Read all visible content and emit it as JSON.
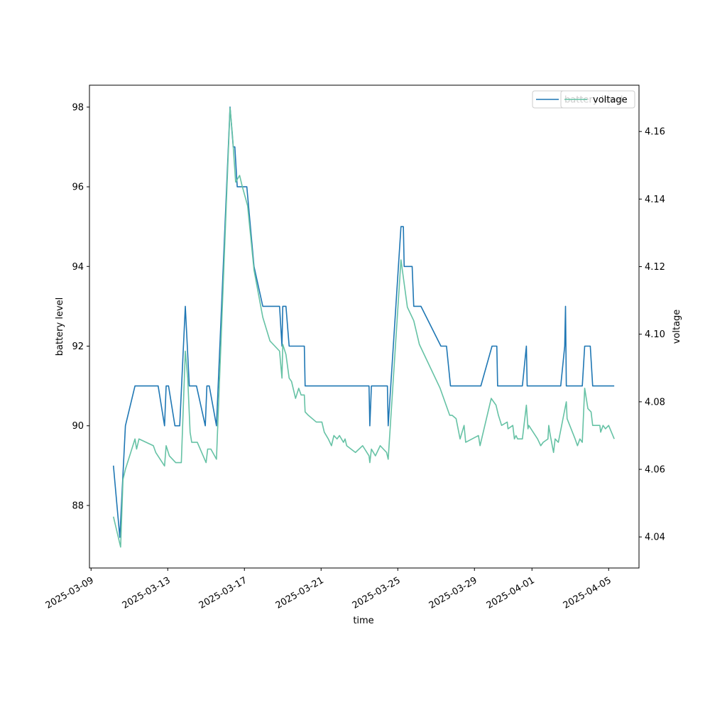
{
  "chart_data": {
    "type": "line",
    "xlabel": "time",
    "ylabel": "battery level",
    "y2label": "voltage",
    "xlim": [
      "2025-03-08 22:00",
      "2025-04-06 14:00"
    ],
    "xticks": [
      "2025-03-09",
      "2025-03-13",
      "2025-03-17",
      "2025-03-21",
      "2025-03-25",
      "2025-03-29",
      "2025-04-01",
      "2025-04-05"
    ],
    "ylim": [
      86.43,
      98.55
    ],
    "yticks": [
      88,
      90,
      92,
      94,
      96,
      98
    ],
    "y2lim": [
      4.0308,
      4.1737
    ],
    "y2ticks": [
      4.04,
      4.06,
      4.08,
      {
        "value": 4.1,
        "label": "4.10"
      },
      4.12,
      4.14,
      4.16
    ],
    "legend": "upper right",
    "series": [
      {
        "name": "battery level",
        "color": "#1f77b4",
        "x": [
          "2025-03-10 04:00",
          "2025-03-10 12:00",
          "2025-03-10 19:00",
          "2025-03-11 07:00",
          "2025-03-12 12:00",
          "2025-03-12 20:00",
          "2025-03-12 22:00",
          "2025-03-13 01:00",
          "2025-03-13 09:00",
          "2025-03-13 15:00",
          "2025-03-13 22:00",
          "2025-03-14 03:00",
          "2025-03-14 12:00",
          "2025-03-14 23:00",
          "2025-03-15 01:00",
          "2025-03-15 04:00",
          "2025-03-15 13:00",
          "2025-03-16 06:00",
          "2025-03-16 10:00",
          "2025-03-16 12:00",
          "2025-03-16 15:00",
          "2025-03-17 03:00",
          "2025-03-17 12:00",
          "2025-03-17 23:00",
          "2025-03-18 20:00",
          "2025-03-18 23:00",
          "2025-03-19 00:00",
          "2025-03-19 04:00",
          "2025-03-19 08:00",
          "2025-03-20 03:00",
          "2025-03-20 04:00",
          "2025-03-23 12:00",
          "2025-03-23 13:00",
          "2025-03-23 15:00",
          "2025-03-24 11:00",
          "2025-03-24 12:00",
          "2025-03-25 04:00",
          "2025-03-25 07:00",
          "2025-03-25 08:00",
          "2025-03-25 18:00",
          "2025-03-25 20:00",
          "2025-03-26 05:00",
          "2025-03-27 06:00",
          "2025-03-27 13:00",
          "2025-03-27 18:00",
          "2025-03-29 08:00",
          "2025-03-29 22:00",
          "2025-03-30 04:00",
          "2025-03-30 05:00",
          "2025-03-31 12:00",
          "2025-03-31 17:00",
          "2025-03-31 18:00",
          "2025-04-02 12:00",
          "2025-04-02 17:00",
          "2025-04-02 18:00",
          "2025-04-02 19:00",
          "2025-04-03 15:00",
          "2025-04-03 18:00",
          "2025-04-04 01:00",
          "2025-04-04 04:00",
          "2025-04-05 07:00"
        ],
        "values": [
          89,
          87.2,
          90,
          91,
          91,
          90,
          91,
          91,
          90,
          90,
          93,
          91,
          91,
          90,
          91,
          91,
          90,
          98,
          97,
          97,
          96,
          96,
          94,
          93,
          93,
          92,
          93,
          93,
          92,
          92,
          91,
          91,
          90,
          91,
          91,
          90,
          95,
          95,
          94,
          94,
          93,
          93,
          92,
          92,
          91,
          91,
          92,
          92,
          91,
          91,
          92,
          91,
          91,
          92,
          93,
          91,
          91,
          92,
          92,
          91,
          91
        ]
      },
      {
        "name": "voltage",
        "color": "#66c2a5",
        "axis": "y2",
        "x": [
          "2025-03-10 04:00",
          "2025-03-10 13:00",
          "2025-03-10 16:00",
          "2025-03-10 19:00",
          "2025-03-11 07:00",
          "2025-03-11 09:00",
          "2025-03-11 12:00",
          "2025-03-12 06:00",
          "2025-03-12 09:00",
          "2025-03-12 20:00",
          "2025-03-12 22:00",
          "2025-03-13 02:00",
          "2025-03-13 10:00",
          "2025-03-13 17:00",
          "2025-03-13 22:00",
          "2025-03-14 01:00",
          "2025-03-14 04:00",
          "2025-03-14 06:00",
          "2025-03-14 13:00",
          "2025-03-15 00:00",
          "2025-03-15 02:00",
          "2025-03-15 06:00",
          "2025-03-15 13:00",
          "2025-03-16 06:00",
          "2025-03-16 09:00",
          "2025-03-16 13:00",
          "2025-03-16 18:00",
          "2025-03-16 21:00",
          "2025-03-17 04:00",
          "2025-03-17 12:00",
          "2025-03-17 23:00",
          "2025-03-18 08:00",
          "2025-03-18 20:00",
          "2025-03-18 23:00",
          "2025-03-19 00:00",
          "2025-03-19 04:00",
          "2025-03-19 08:00",
          "2025-03-19 11:00",
          "2025-03-19 14:00",
          "2025-03-19 16:00",
          "2025-03-19 20:00",
          "2025-03-19 23:00",
          "2025-03-20 03:00",
          "2025-03-20 04:00",
          "2025-03-20 08:00",
          "2025-03-20 18:00",
          "2025-03-21 01:00",
          "2025-03-21 04:00",
          "2025-03-21 09:00",
          "2025-03-21 13:00",
          "2025-03-21 16:00",
          "2025-03-21 20:00",
          "2025-03-21 23:00",
          "2025-03-22 04:00",
          "2025-03-22 06:00",
          "2025-03-22 08:00",
          "2025-03-22 19:00",
          "2025-03-23 04:00",
          "2025-03-23 12:00",
          "2025-03-23 13:00",
          "2025-03-23 15:00",
          "2025-03-23 20:00",
          "2025-03-24 02:00",
          "2025-03-24 06:00",
          "2025-03-24 10:00",
          "2025-03-24 12:00",
          "2025-03-25 04:00",
          "2025-03-25 08:00",
          "2025-03-25 12:00",
          "2025-03-25 20:00",
          "2025-03-26 03:00",
          "2025-03-27 05:00",
          "2025-03-27 11:00",
          "2025-03-27 17:00",
          "2025-03-27 20:00",
          "2025-03-28 01:00",
          "2025-03-28 06:00",
          "2025-03-28 11:00",
          "2025-03-28 13:00",
          "2025-03-29 05:00",
          "2025-03-29 07:00",
          "2025-03-29 21:00",
          "2025-03-30 03:00",
          "2025-03-30 06:00",
          "2025-03-30 10:00",
          "2025-03-30 17:00",
          "2025-03-30 18:00",
          "2025-03-31 00:00",
          "2025-03-31 02:00",
          "2025-03-31 04:00",
          "2025-03-31 06:00",
          "2025-03-31 09:00",
          "2025-03-31 12:00",
          "2025-03-31 17:00",
          "2025-03-31 19:00",
          "2025-03-31 20:00",
          "2025-04-01 07:00",
          "2025-04-01 11:00",
          "2025-04-01 14:00",
          "2025-04-01 20:00",
          "2025-04-01 21:00",
          "2025-04-01 23:00",
          "2025-04-02 03:00",
          "2025-04-02 05:00",
          "2025-04-02 09:00",
          "2025-04-02 19:00",
          "2025-04-02 20:00",
          "2025-04-03 06:00",
          "2025-04-03 09:00",
          "2025-04-03 12:00",
          "2025-04-03 15:00",
          "2025-04-03 18:00",
          "2025-04-03 22:00",
          "2025-04-04 02:00",
          "2025-04-04 04:00",
          "2025-04-04 13:00",
          "2025-04-04 14:00",
          "2025-04-04 17:00",
          "2025-04-04 20:00",
          "2025-04-05 00:00",
          "2025-04-05 07:00"
        ],
        "values": [
          4.046,
          4.037,
          4.057,
          4.06,
          4.069,
          4.066,
          4.069,
          4.067,
          4.065,
          4.061,
          4.067,
          4.064,
          4.062,
          4.062,
          4.095,
          4.087,
          4.071,
          4.068,
          4.068,
          4.062,
          4.066,
          4.066,
          4.063,
          4.167,
          4.159,
          4.145,
          4.147,
          4.144,
          4.138,
          4.119,
          4.105,
          4.098,
          4.095,
          4.087,
          4.097,
          4.094,
          4.087,
          4.086,
          4.083,
          4.081,
          4.084,
          4.082,
          4.082,
          4.077,
          4.076,
          4.074,
          4.074,
          4.071,
          4.069,
          4.067,
          4.07,
          4.069,
          4.07,
          4.068,
          4.069,
          4.067,
          4.065,
          4.067,
          4.064,
          4.062,
          4.066,
          4.064,
          4.067,
          4.066,
          4.065,
          4.063,
          4.122,
          4.115,
          4.108,
          4.104,
          4.097,
          4.084,
          4.08,
          4.076,
          4.076,
          4.075,
          4.069,
          4.073,
          4.068,
          4.07,
          4.067,
          4.081,
          4.079,
          4.076,
          4.073,
          4.074,
          4.072,
          4.073,
          4.069,
          4.07,
          4.069,
          4.069,
          4.069,
          4.079,
          4.072,
          4.073,
          4.069,
          4.067,
          4.068,
          4.069,
          4.073,
          4.07,
          4.065,
          4.069,
          4.068,
          4.08,
          4.075,
          4.069,
          4.067,
          4.069,
          4.068,
          4.084,
          4.078,
          4.077,
          4.073,
          4.073,
          4.071,
          4.073,
          4.072,
          4.073,
          4.069
        ]
      }
    ]
  }
}
